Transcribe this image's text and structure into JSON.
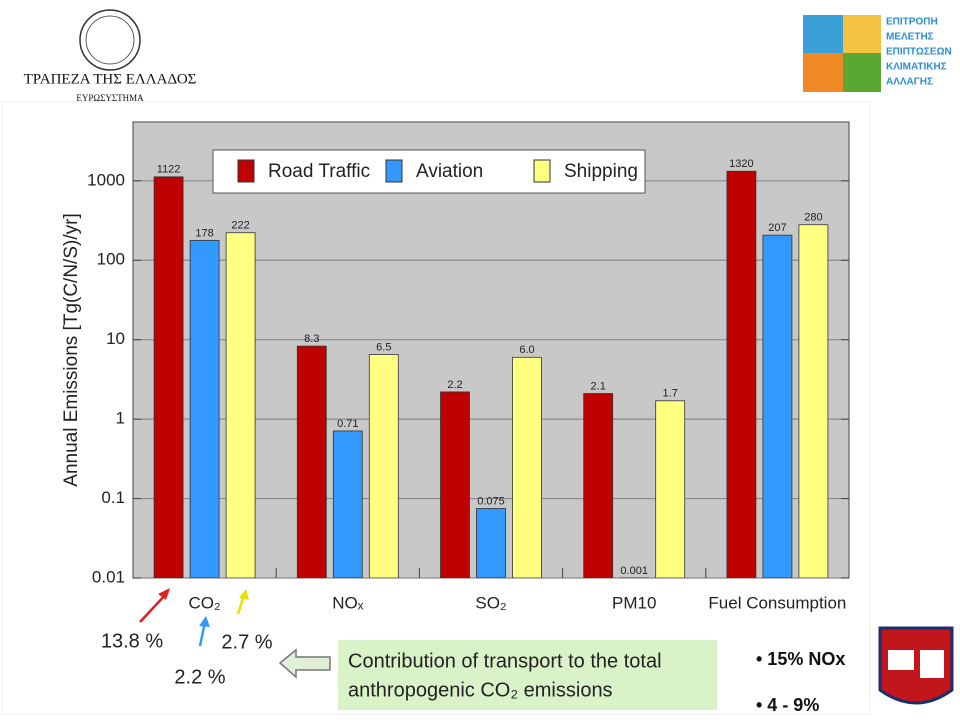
{
  "header": {
    "left": {
      "title": "ΤΡΑΠΕΖΑ ΤΗΣ ΕΛΛΑΔΟΣ",
      "subtitle": "ΕΥΡΩΣΥΣΤΗΜΑ"
    },
    "right": {
      "lines": [
        "ΕΠΙΤΡΟΠΗ",
        "ΜΕΛΕΤΗΣ",
        "ΕΠΙΠΤΩΣΕΩΝ",
        "ΚΛΙΜΑΤΙΚΗΣ",
        "ΑΛΛΑΓΗΣ"
      ]
    }
  },
  "chart_data": {
    "type": "bar",
    "log_scale": true,
    "grid": true,
    "legend": "top",
    "ylabel": "Annual Emissions [Tg(C/N/S)/yr]",
    "categories": [
      "CO₂",
      "NOₓ",
      "SO₂",
      "PM10",
      "Fuel Consumption"
    ],
    "series": [
      {
        "name": "Road Traffic",
        "color": "#c00000",
        "values": [
          1122,
          8.3,
          2.2,
          2.1,
          1320
        ],
        "value_labels": [
          "1122",
          "8.3",
          "2.2",
          "2.1",
          "1320"
        ]
      },
      {
        "name": "Aviation",
        "color": "#3399ff",
        "values": [
          178,
          0.71,
          0.075,
          0.001,
          207
        ],
        "value_labels": [
          "178",
          "0.71",
          "0.075",
          "0.001",
          "207"
        ]
      },
      {
        "name": "Shipping",
        "color": "#ffff80",
        "values": [
          222,
          6.5,
          6.0,
          1.7,
          280
        ],
        "value_labels": [
          "222",
          "6.5",
          "6.0",
          "1.7",
          "280"
        ]
      }
    ],
    "ylim": [
      0.01,
      5500
    ],
    "yticks": [
      0.01,
      0.1,
      1,
      10,
      100,
      1000
    ],
    "annotations": {
      "road_share": "13.8 %",
      "aviation_share": "2.2 %",
      "shipping_share": "2.7 %",
      "box": [
        "Contribution of transport to the total",
        "anthropogenic CO₂ emissions"
      ],
      "bullets": [
        "• 15%  NOx",
        "• 4 - 9%"
      ]
    }
  }
}
